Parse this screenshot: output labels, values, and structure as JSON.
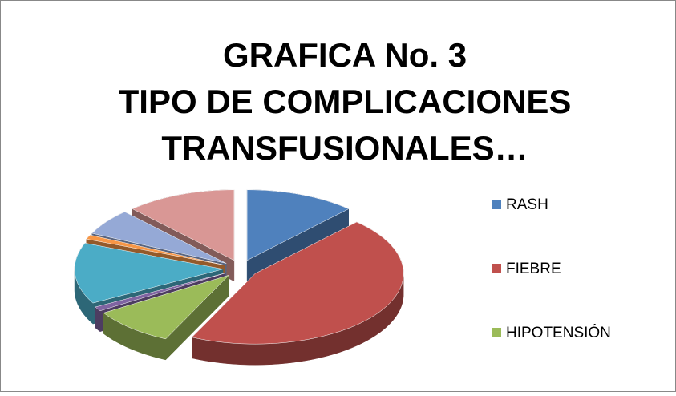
{
  "chart_data": {
    "type": "pie",
    "title": [
      "GRAFICA No. 3",
      "TIPO DE COMPLICACIONES",
      "TRANSFUSIONALES…"
    ],
    "categories": [
      "RASH",
      "FIEBRE",
      "HIPOTENSIÓN",
      null,
      null,
      null,
      null,
      null
    ],
    "values": [
      12,
      45,
      9,
      1,
      14,
      1,
      6,
      12
    ],
    "colors": [
      "#4f81bd",
      "#c0504d",
      "#9bbb59",
      "#8064a2",
      "#4bacc6",
      "#f79646",
      "#95a9d6",
      "#d99795"
    ],
    "legend": "right"
  }
}
